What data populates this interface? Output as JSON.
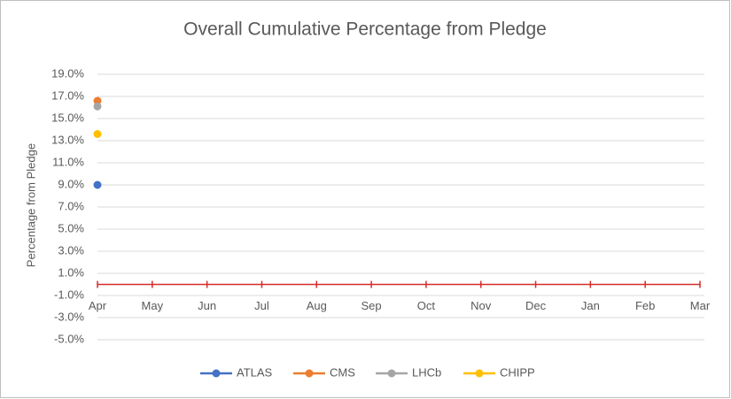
{
  "chart_data": {
    "type": "line",
    "title": "Overall Cumulative Percentage from Pledge",
    "y_label": "Percentage from Pledge",
    "categories": [
      "Apr",
      "May",
      "Jun",
      "Jul",
      "Aug",
      "Sep",
      "Oct",
      "Nov",
      "Dec",
      "Jan",
      "Feb",
      "Mar"
    ],
    "series": [
      {
        "name": "ATLAS",
        "color": "#4472c4",
        "values": [
          9.0,
          null,
          null,
          null,
          null,
          null,
          null,
          null,
          null,
          null,
          null,
          null
        ]
      },
      {
        "name": "CMS",
        "color": "#ed7d31",
        "values": [
          16.6,
          null,
          null,
          null,
          null,
          null,
          null,
          null,
          null,
          null,
          null,
          null
        ]
      },
      {
        "name": "LHCb",
        "color": "#a5a5a5",
        "values": [
          16.1,
          null,
          null,
          null,
          null,
          null,
          null,
          null,
          null,
          null,
          null,
          null
        ]
      },
      {
        "name": "CHIPP",
        "color": "#ffc000",
        "values": [
          13.6,
          null,
          null,
          null,
          null,
          null,
          null,
          null,
          null,
          null,
          null,
          null
        ]
      }
    ],
    "ylim": [
      -5,
      19
    ],
    "yticks": [
      {
        "value": 19,
        "label": "19.0%"
      },
      {
        "value": 17,
        "label": "17.0%"
      },
      {
        "value": 15,
        "label": "15.0%"
      },
      {
        "value": 13,
        "label": "13.0%"
      },
      {
        "value": 11,
        "label": "11.0%"
      },
      {
        "value": 9,
        "label": "9.0%"
      },
      {
        "value": 7,
        "label": "7.0%"
      },
      {
        "value": 5,
        "label": "5.0%"
      },
      {
        "value": 3,
        "label": "3.0%"
      },
      {
        "value": 1,
        "label": "1.0%"
      },
      {
        "value": -1,
        "label": "-1.0%"
      },
      {
        "value": -3,
        "label": "-3.0%"
      },
      {
        "value": -5,
        "label": "-5.0%"
      }
    ],
    "grid": true,
    "legend": "bottom"
  }
}
